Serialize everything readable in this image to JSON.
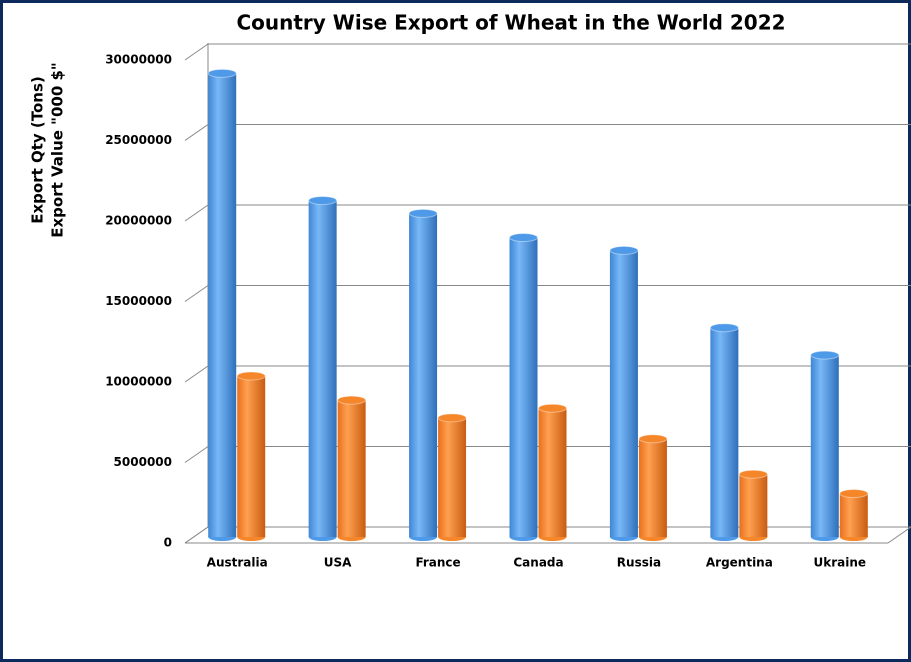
{
  "chart_data": {
    "type": "bar3d",
    "title": "Country Wise Export of Wheat in the World 2022",
    "y_label": [
      "Export Qty (Tons)",
      "Export Value \"000 $\""
    ],
    "categories": [
      "Australia",
      "USA",
      "France",
      "Canada",
      "Russia",
      "Argentina",
      "Ukraine"
    ],
    "series": [
      {
        "color": "#4f9ae8",
        "values": [
          28800000,
          20900000,
          20100000,
          18600000,
          17800000,
          13000000,
          11300000
        ]
      },
      {
        "color": "#f5862a",
        "values": [
          10000000,
          8500000,
          7400000,
          8000000,
          6100000,
          3900000,
          2700000
        ]
      }
    ],
    "ylim": [
      0,
      30000000
    ],
    "yticks": [
      0,
      5000000,
      10000000,
      15000000,
      20000000,
      25000000,
      30000000
    ],
    "grid": true
  }
}
